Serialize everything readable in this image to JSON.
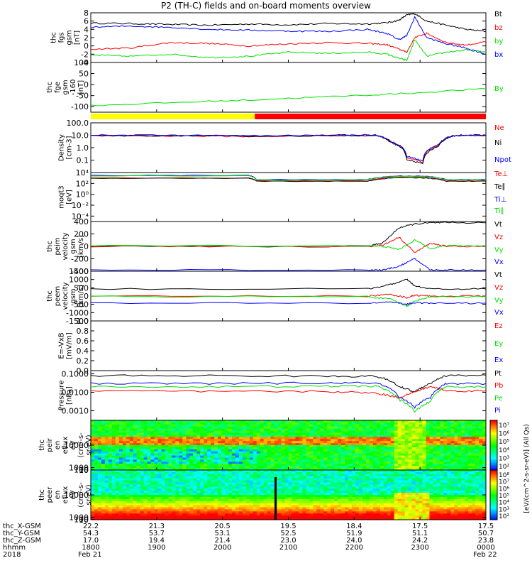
{
  "title": "P2 (TH-C) fields and on-board moments overview",
  "colors": {
    "black": "#000000",
    "red": "#ff0000",
    "green": "#00e000",
    "blue": "#0000ff",
    "yellow": "#ffff00",
    "cyan": "#00c0c0",
    "grid": "#000000"
  },
  "chart_data": [
    {
      "type": "line",
      "ylabel": [
        "thc",
        "fgs",
        "gsm",
        "[nT]"
      ],
      "ylim": [
        -4,
        8
      ],
      "yticks": [
        "8",
        "6",
        "4",
        "2",
        "0",
        "-2",
        "-4"
      ],
      "ytick_values": [
        8,
        6,
        4,
        2,
        0,
        -2,
        -4
      ],
      "series": [
        {
          "name": "Bt",
          "color": "black",
          "x": [
            0,
            0.1,
            0.2,
            0.3,
            0.4,
            0.5,
            0.6,
            0.7,
            0.75,
            0.78,
            0.8,
            0.82,
            0.85,
            0.9,
            0.95,
            1.0
          ],
          "values": [
            5.5,
            5.4,
            5.2,
            5.0,
            5.3,
            5.1,
            5.4,
            5.3,
            5.6,
            6.2,
            7.5,
            7.8,
            6.0,
            5.0,
            4.0,
            3.5
          ]
        },
        {
          "name": "bz",
          "color": "red",
          "x": [
            0,
            0.1,
            0.2,
            0.3,
            0.4,
            0.5,
            0.6,
            0.7,
            0.75,
            0.78,
            0.8,
            0.82,
            0.85,
            0.9,
            0.95,
            1.0
          ],
          "values": [
            -0.8,
            -0.5,
            0.8,
            0.6,
            0.0,
            0.5,
            0.8,
            0.6,
            0.3,
            -0.8,
            -1.5,
            2.0,
            3.0,
            0.8,
            0.2,
            1.0
          ]
        },
        {
          "name": "by",
          "color": "green",
          "x": [
            0,
            0.1,
            0.2,
            0.3,
            0.4,
            0.5,
            0.6,
            0.7,
            0.75,
            0.78,
            0.8,
            0.82,
            0.85,
            0.9,
            0.95,
            1.0
          ],
          "values": [
            -2.2,
            -2.5,
            -2.0,
            -2.8,
            -2.5,
            -1.5,
            -1.8,
            -1.5,
            -2.0,
            -3.0,
            -3.5,
            1.5,
            -2.5,
            -1.5,
            -1.0,
            -1.5
          ]
        },
        {
          "name": "bx",
          "color": "blue",
          "x": [
            0,
            0.1,
            0.2,
            0.3,
            0.4,
            0.5,
            0.6,
            0.7,
            0.75,
            0.78,
            0.8,
            0.82,
            0.85,
            0.9,
            0.95,
            1.0
          ],
          "values": [
            4.5,
            4.8,
            4.5,
            4.0,
            3.8,
            3.6,
            3.5,
            4.0,
            3.0,
            1.5,
            2.5,
            7.0,
            2.0,
            0.5,
            -0.5,
            -2.0
          ]
        }
      ]
    },
    {
      "type": "line",
      "ylabel": [
        "thc",
        "fge",
        "gsm",
        "-160",
        "[nT]"
      ],
      "ylim": [
        -125,
        100
      ],
      "yticks": [
        "100",
        "50",
        "0",
        "-50",
        "-100"
      ],
      "ytick_values": [
        100,
        50,
        0,
        -50,
        -100
      ],
      "series": [
        {
          "name": "By",
          "color": "green",
          "x": [
            0,
            0.2,
            0.4,
            0.6,
            0.8,
            1.0
          ],
          "values": [
            -95,
            -82,
            -70,
            -55,
            -40,
            -18
          ]
        }
      ]
    },
    {
      "type": "bar",
      "description": "mode bar",
      "segments": [
        {
          "from": 0.0,
          "to": 0.415,
          "color": "yellow"
        },
        {
          "from": 0.415,
          "to": 1.0,
          "color": "red"
        }
      ]
    },
    {
      "type": "line",
      "scale": "log",
      "ylabel": [
        "Density",
        "[cm-3]"
      ],
      "ylim": [
        0.01,
        100
      ],
      "yticks": [
        "100.0",
        "10.0",
        "1.0",
        "0.1"
      ],
      "ytick_values": [
        100,
        10,
        1,
        0.1
      ],
      "series": [
        {
          "name": "Ne",
          "color": "red",
          "x": [
            0,
            0.2,
            0.4,
            0.6,
            0.72,
            0.76,
            0.8,
            0.84,
            0.88,
            0.92,
            1.0
          ],
          "values": [
            9,
            9,
            8,
            9,
            10,
            3,
            0.15,
            0.06,
            1.5,
            9,
            10
          ]
        },
        {
          "name": "Ni",
          "color": "black",
          "x": [
            0,
            0.2,
            0.4,
            0.6,
            0.72,
            0.76,
            0.8,
            0.84,
            0.88,
            0.92,
            1.0
          ],
          "values": [
            9,
            9.5,
            8.5,
            9.5,
            10,
            2.5,
            0.1,
            0.05,
            1.2,
            9,
            10
          ]
        },
        {
          "name": "Npot",
          "color": "blue",
          "x": [
            0,
            0.2,
            0.4,
            0.6,
            0.72,
            0.76,
            0.8,
            0.84,
            0.88,
            0.92,
            1.0
          ],
          "values": [
            10,
            10,
            9,
            10,
            11,
            3,
            0.2,
            0.08,
            1.8,
            10,
            11
          ]
        }
      ]
    },
    {
      "type": "line",
      "scale": "log",
      "ylabel": [
        "moqt3",
        "[eV]"
      ],
      "ylim": [
        1e-05,
        10000
      ],
      "yticks": [
        "10⁴",
        "10²",
        "10⁰",
        "10⁻²",
        "10⁻⁴"
      ],
      "ytick_values": [
        10000,
        100,
        1,
        0.01,
        0.0001
      ],
      "series": [
        {
          "name": "Te⊥",
          "color": "red",
          "x": [
            0,
            0.4,
            0.42,
            0.7,
            0.78,
            0.85,
            0.9,
            1.0
          ],
          "values": [
            1000,
            1000,
            300,
            300,
            1500,
            1200,
            300,
            300
          ]
        },
        {
          "name": "Te∥",
          "color": "black",
          "x": [
            0,
            0.4,
            0.42,
            0.7,
            0.78,
            0.85,
            0.9,
            1.0
          ],
          "values": [
            900,
            900,
            250,
            250,
            1200,
            1000,
            250,
            250
          ]
        },
        {
          "name": "Ti⊥",
          "color": "blue",
          "x": [
            0,
            0.4,
            0.42,
            0.7,
            0.78,
            0.85,
            0.9,
            1.0
          ],
          "values": [
            3000,
            3000,
            500,
            500,
            2500,
            2000,
            500,
            500
          ]
        },
        {
          "name": "Ti∥",
          "color": "green",
          "x": [
            0,
            0.4,
            0.42,
            0.7,
            0.78,
            0.85,
            0.9,
            1.0
          ],
          "values": [
            2500,
            2500,
            450,
            450,
            2200,
            1800,
            450,
            450
          ]
        }
      ]
    },
    {
      "type": "line",
      "ylabel": [
        "thc",
        "peim",
        "velocity",
        "gsm",
        "[km/s]"
      ],
      "ylim": [
        -400,
        400
      ],
      "yticks": [
        "400",
        "200",
        "0",
        "-200",
        "-400"
      ],
      "ytick_values": [
        400,
        200,
        0,
        -200,
        -400
      ],
      "series": [
        {
          "name": "Vt",
          "color": "black",
          "x": [
            0,
            0.7,
            0.74,
            0.78,
            0.82,
            0.86,
            0.9,
            1.0
          ],
          "values": [
            0,
            0,
            60,
            300,
            360,
            380,
            380,
            380
          ]
        },
        {
          "name": "Vz",
          "color": "red",
          "x": [
            0,
            0.7,
            0.74,
            0.78,
            0.82,
            0.86,
            0.9,
            1.0
          ],
          "values": [
            0,
            0,
            20,
            150,
            -100,
            50,
            0,
            0
          ]
        },
        {
          "name": "Vy",
          "color": "green",
          "x": [
            0,
            0.7,
            0.74,
            0.78,
            0.82,
            0.86,
            0.9,
            1.0
          ],
          "values": [
            10,
            10,
            0,
            -50,
            100,
            -30,
            10,
            10
          ]
        },
        {
          "name": "Vx",
          "color": "blue",
          "x": [
            0,
            0.7,
            0.74,
            0.78,
            0.82,
            0.86,
            0.9,
            1.0
          ],
          "values": [
            -380,
            -380,
            -380,
            -320,
            -200,
            -380,
            -380,
            -380
          ]
        }
      ]
    },
    {
      "type": "line",
      "ylabel": [
        "thc",
        "peem",
        "velocity",
        "gsm",
        "[km/s]"
      ],
      "ylim": [
        -1500,
        1500
      ],
      "yticks": [
        "1500",
        "1000",
        "500",
        "0",
        "-500",
        "-1000",
        "-1500"
      ],
      "ytick_values": [
        1500,
        1000,
        500,
        0,
        -500,
        -1000,
        -1500
      ],
      "series": [
        {
          "name": "Vt",
          "color": "black",
          "x": [
            0,
            0.7,
            0.76,
            0.8,
            0.82,
            0.86,
            1.0
          ],
          "values": [
            430,
            430,
            700,
            1000,
            600,
            430,
            430
          ]
        },
        {
          "name": "Vz",
          "color": "red",
          "x": [
            0,
            0.7,
            0.76,
            0.8,
            0.82,
            0.86,
            1.0
          ],
          "values": [
            0,
            0,
            100,
            -100,
            50,
            0,
            0
          ]
        },
        {
          "name": "Vy",
          "color": "green",
          "x": [
            0,
            0.7,
            0.76,
            0.8,
            0.82,
            0.86,
            1.0
          ],
          "values": [
            -30,
            -30,
            -200,
            -600,
            -300,
            -30,
            -30
          ]
        },
        {
          "name": "Vx",
          "color": "blue",
          "x": [
            0,
            0.7,
            0.76,
            0.8,
            0.82,
            0.86,
            1.0
          ],
          "values": [
            -430,
            -430,
            -350,
            -500,
            -400,
            -430,
            -430
          ]
        }
      ]
    },
    {
      "type": "line",
      "ylabel": [
        "E=-VxB",
        "[mV/m]"
      ],
      "ylim": [
        0,
        1
      ],
      "yticks": [
        "1.0",
        "0.8",
        "0.6",
        "0.4",
        "0.2",
        "0.0"
      ],
      "ytick_values": [
        1.0,
        0.8,
        0.6,
        0.4,
        0.2,
        0.0
      ],
      "series": [
        {
          "name": "Ez",
          "color": "red",
          "x": [],
          "values": []
        },
        {
          "name": "Ey",
          "color": "green",
          "x": [],
          "values": []
        },
        {
          "name": "Ex",
          "color": "blue",
          "x": [],
          "values": []
        }
      ]
    },
    {
      "type": "line",
      "scale": "log",
      "ylabel": [
        "Pressure",
        "[nPa]"
      ],
      "ylim": [
        0.0003,
        0.15
      ],
      "yticks": [
        "0.1000",
        "0.0100",
        "0.0010"
      ],
      "ytick_values": [
        0.1,
        0.01,
        0.001
      ],
      "series": [
        {
          "name": "Pt",
          "color": "black",
          "x": [
            0,
            0.3,
            0.6,
            0.72,
            0.78,
            0.82,
            0.86,
            0.9,
            1.0
          ],
          "values": [
            0.08,
            0.08,
            0.075,
            0.075,
            0.02,
            0.01,
            0.03,
            0.08,
            0.085
          ]
        },
        {
          "name": "Pb",
          "color": "red",
          "x": [
            0,
            0.3,
            0.6,
            0.72,
            0.78,
            0.82,
            0.86,
            0.9,
            1.0
          ],
          "values": [
            0.012,
            0.011,
            0.011,
            0.009,
            0.005,
            0.01,
            0.02,
            0.012,
            0.012
          ]
        },
        {
          "name": "Pe",
          "color": "green",
          "x": [
            0,
            0.3,
            0.6,
            0.72,
            0.78,
            0.82,
            0.86,
            0.9,
            1.0
          ],
          "values": [
            0.02,
            0.02,
            0.021,
            0.022,
            0.004,
            0.0008,
            0.003,
            0.02,
            0.02
          ]
        },
        {
          "name": "Pi",
          "color": "blue",
          "x": [
            0,
            0.3,
            0.6,
            0.72,
            0.78,
            0.82,
            0.86,
            0.9,
            1.0
          ],
          "values": [
            0.03,
            0.03,
            0.032,
            0.032,
            0.005,
            0.0015,
            0.005,
            0.03,
            0.03
          ]
        }
      ]
    },
    {
      "type": "heatmap",
      "ylabel": [
        "thc",
        "peir",
        "en",
        "eflux",
        "eV",
        "(cm²-s-",
        "sr-eV)"
      ],
      "ylim": [
        5,
        20000
      ],
      "yticks": [
        "10000",
        "1000",
        "100",
        "10"
      ],
      "ytick_values": [
        10000,
        1000,
        100,
        10
      ]
    },
    {
      "type": "heatmap",
      "ylabel": [
        "thc",
        "peer",
        "en",
        "eflux",
        "eV",
        "(cm²-s-",
        "sr-eV)"
      ],
      "ylim": [
        5,
        20000
      ],
      "yticks": [
        "10000",
        "1000",
        "100",
        "10"
      ],
      "ytick_values": [
        10000,
        1000,
        100,
        10
      ]
    }
  ],
  "colorbar": {
    "label": "[eV/(cm^2-s-sr-eV)] (All Qs)",
    "label_upper": "eV/(cm²-s-sr-eV)] (All Qs)",
    "ticks_upper": [
      "10⁷",
      "10⁶",
      "10⁵",
      "10⁴",
      "10³",
      "10²"
    ],
    "ticks_lower": [
      "10⁸",
      "10⁷",
      "10⁶",
      "10⁵",
      "10⁴",
      "10³",
      "10²"
    ]
  },
  "xaxis": {
    "row_labels": [
      "thc_X-GSM",
      "thc_Y-GSM",
      "thc_Z-GSM",
      "hhmm",
      "2018"
    ],
    "ticks": [
      {
        "X": "22.2",
        "Y": "54.3",
        "Z": "17.0",
        "hhmm": "1800",
        "date": "Feb 21"
      },
      {
        "X": "21.3",
        "Y": "53.7",
        "Z": "19.4",
        "hhmm": "1900",
        "date": ""
      },
      {
        "X": "20.5",
        "Y": "53.1",
        "Z": "21.4",
        "hhmm": "2000",
        "date": ""
      },
      {
        "X": "19.5",
        "Y": "52.5",
        "Z": "23.0",
        "hhmm": "2100",
        "date": ""
      },
      {
        "X": "18.4",
        "Y": "51.9",
        "Z": "24.0",
        "hhmm": "2200",
        "date": ""
      },
      {
        "X": "17.5",
        "Y": "51.1",
        "Z": "24.2",
        "hhmm": "2300",
        "date": ""
      },
      {
        "X": "17.5",
        "Y": "50.7",
        "Z": "23.8",
        "hhmm": "0000",
        "date": "Feb 22"
      }
    ]
  }
}
